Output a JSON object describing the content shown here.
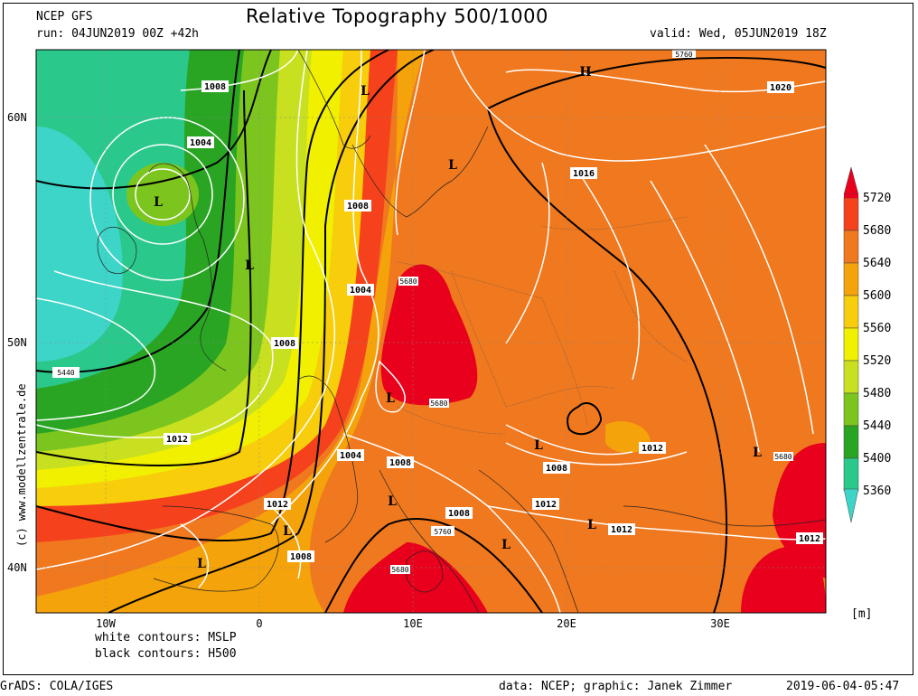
{
  "header": {
    "model": "NCEP GFS",
    "title": "Relative Topography 500/1000",
    "run": "run: 04JUN2019 00Z +42h",
    "valid": "valid: Wed, 05JUN2019 18Z"
  },
  "map": {
    "lat_labels": [
      "60N",
      "50N",
      "40N"
    ],
    "lon_labels": [
      "10W",
      "0",
      "10E",
      "20E",
      "30E"
    ],
    "side_credit": "(c)  www.modellzentrale.de",
    "isobar_labels": [
      "1008",
      "1004",
      "1008",
      "1008",
      "1004",
      "1008",
      "1012",
      "1004",
      "1008",
      "1012",
      "1008",
      "1012",
      "1012",
      "1012",
      "1008",
      "1016",
      "1020",
      "1012"
    ],
    "height_labels": [
      "5440",
      "5680",
      "5680",
      "5760",
      "5680",
      "5680",
      "5760"
    ],
    "pressure_centers": [
      "H",
      "L",
      "L",
      "L",
      "L",
      "L",
      "L",
      "L",
      "L",
      "L",
      "L",
      "L",
      "L"
    ]
  },
  "colorbar": {
    "levels": [
      "5720",
      "5680",
      "5640",
      "5600",
      "5560",
      "5520",
      "5480",
      "5440",
      "5400",
      "5360"
    ],
    "colors": [
      "#e8001c",
      "#f5411c",
      "#f0781e",
      "#f5a30a",
      "#f7cd0c",
      "#f0f000",
      "#c8e020",
      "#7cc51e",
      "#29a523",
      "#2bc88c",
      "#3cd5c8"
    ],
    "unit": "[m]"
  },
  "footer": {
    "legend_white": "white contours: MSLP",
    "legend_black": "black contours: H500",
    "grads": "GrADS: COLA/IGES",
    "credit": "data: NCEP; graphic: Janek Zimmer",
    "timestamp": "2019-06-04-05:47"
  }
}
